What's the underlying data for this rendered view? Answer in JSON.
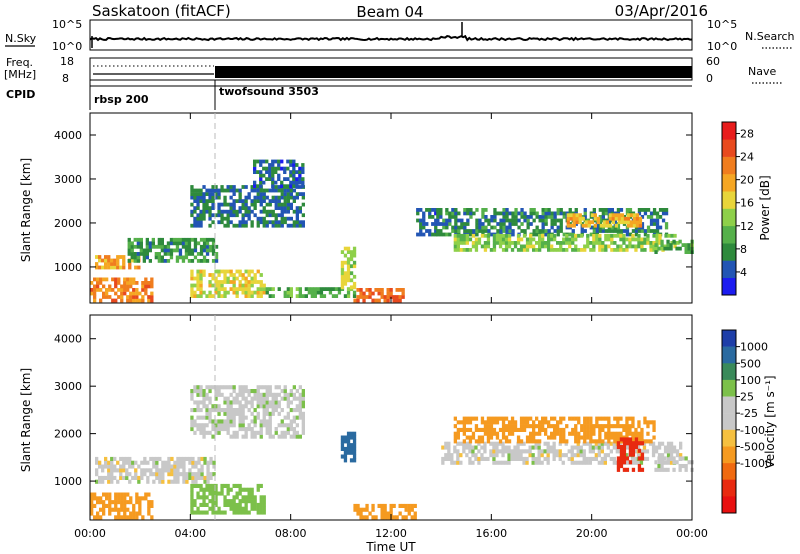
{
  "header": {
    "title": "Saskatoon (fitACF)",
    "beam": "Beam 04",
    "date": "03/Apr/2016"
  },
  "noise_panel": {
    "left_label": "N.Sky",
    "left_ticks": [
      "10^5",
      "10^0"
    ],
    "right_label": "N.Search",
    "right_ticks": [
      "10^5",
      "10^0"
    ]
  },
  "freq_panel": {
    "left_label_1": "Freq.",
    "left_label_2": "[MHz]",
    "left_ticks": [
      "18",
      "8"
    ],
    "right_label": "Nave",
    "right_ticks": [
      "60",
      "0"
    ]
  },
  "cpid_panel": {
    "label": "CPID",
    "segments": [
      {
        "name": "rbsp 200",
        "start_hour": 0,
        "end_hour": 5
      },
      {
        "name": "twofsound 3503",
        "start_hour": 5,
        "end_hour": 24
      }
    ]
  },
  "colors": {
    "power_scale": [
      "#1c1cf0",
      "#2255b4",
      "#2e8a3c",
      "#55b04a",
      "#8ed04a",
      "#e8d53a",
      "#f5a623",
      "#f07d1e",
      "#e84a1e",
      "#e81c1c"
    ],
    "velocity_scale": [
      "#1e3ea8",
      "#2a6aa0",
      "#3a8a5a",
      "#7cc04a",
      "#c8c8c8",
      "#c8c8c8",
      "#f5c040",
      "#f59a20",
      "#f06a10",
      "#e82a10",
      "#e81010"
    ]
  },
  "chart_data": [
    {
      "type": "heatmap",
      "parameter": "Power",
      "ylabel": "Slant Range [km]",
      "ylim": [
        180,
        4500
      ],
      "yticks": [
        "1000",
        "2000",
        "3000",
        "4000"
      ],
      "xlim_hours": [
        0,
        24
      ],
      "colorbar_label": "Power [dB]",
      "colorbar_ticks": [
        "4",
        "8",
        "12",
        "16",
        "20",
        "24",
        "28"
      ],
      "colorbar_range": [
        0,
        30
      ],
      "regions": [
        {
          "t0": 0.0,
          "t1": 2.5,
          "r0": 200,
          "r1": 700,
          "value": 22
        },
        {
          "t0": 0.2,
          "t1": 2.0,
          "r0": 950,
          "r1": 1250,
          "value": 20
        },
        {
          "t0": 1.5,
          "t1": 5.0,
          "r0": 1100,
          "r1": 1600,
          "value": 8
        },
        {
          "t0": 4.0,
          "t1": 8.5,
          "r0": 1900,
          "r1": 2800,
          "value": 6
        },
        {
          "t0": 6.5,
          "t1": 8.5,
          "r0": 2800,
          "r1": 3400,
          "value": 5
        },
        {
          "t0": 4.0,
          "t1": 7.0,
          "r0": 300,
          "r1": 900,
          "value": 16
        },
        {
          "t0": 7.0,
          "t1": 10.5,
          "r0": 300,
          "r1": 500,
          "value": 10
        },
        {
          "t0": 10.0,
          "t1": 10.5,
          "r0": 500,
          "r1": 1400,
          "value": 14
        },
        {
          "t0": 10.5,
          "t1": 12.5,
          "r0": 200,
          "r1": 500,
          "value": 24
        },
        {
          "t0": 13.0,
          "t1": 13.8,
          "r0": 1700,
          "r1": 2300,
          "value": 5
        },
        {
          "t0": 13.8,
          "t1": 23.0,
          "r0": 1700,
          "r1": 2300,
          "value": 7
        },
        {
          "t0": 14.5,
          "t1": 23.5,
          "r0": 1350,
          "r1": 1700,
          "value": 13
        },
        {
          "t0": 19.0,
          "t1": 22.0,
          "r0": 1900,
          "r1": 2200,
          "value": 19
        },
        {
          "t0": 22.5,
          "t1": 24.0,
          "r0": 1300,
          "r1": 1600,
          "value": 10
        }
      ]
    },
    {
      "type": "heatmap",
      "parameter": "Velocity",
      "ylabel": "Slant Range [km]",
      "ylim": [
        180,
        4500
      ],
      "yticks": [
        "1000",
        "2000",
        "3000",
        "4000"
      ],
      "xlabel": "Time UT",
      "xticks": [
        "00:00",
        "04:00",
        "08:00",
        "12:00",
        "16:00",
        "20:00",
        "00:00"
      ],
      "xlim_hours": [
        0,
        24
      ],
      "colorbar_label": "Velocity [m s⁻¹]",
      "colorbar_ticks": [
        "1000",
        "500",
        "100",
        "25",
        "-25",
        "-100",
        "-500",
        "-1000"
      ],
      "regions": [
        {
          "t0": 0.0,
          "t1": 2.5,
          "r0": 200,
          "r1": 700,
          "value": -150
        },
        {
          "t0": 0.2,
          "t1": 5.0,
          "r0": 950,
          "r1": 1500,
          "value": 0
        },
        {
          "t0": 4.0,
          "t1": 8.5,
          "r0": 1900,
          "r1": 3000,
          "value": 5
        },
        {
          "t0": 4.0,
          "t1": 7.0,
          "r0": 300,
          "r1": 900,
          "value": 60
        },
        {
          "t0": 10.0,
          "t1": 10.5,
          "r0": 1400,
          "r1": 2000,
          "value": 600
        },
        {
          "t0": 10.5,
          "t1": 13.0,
          "r0": 200,
          "r1": 500,
          "value": -150
        },
        {
          "t0": 14.0,
          "t1": 23.5,
          "r0": 1350,
          "r1": 1800,
          "value": 0
        },
        {
          "t0": 14.5,
          "t1": 22.5,
          "r0": 1800,
          "r1": 2300,
          "value": -200
        },
        {
          "t0": 21.0,
          "t1": 22.0,
          "r0": 1200,
          "r1": 1900,
          "value": -700
        },
        {
          "t0": 22.5,
          "t1": 24.0,
          "r0": 1200,
          "r1": 1500,
          "value": 5
        }
      ]
    }
  ]
}
